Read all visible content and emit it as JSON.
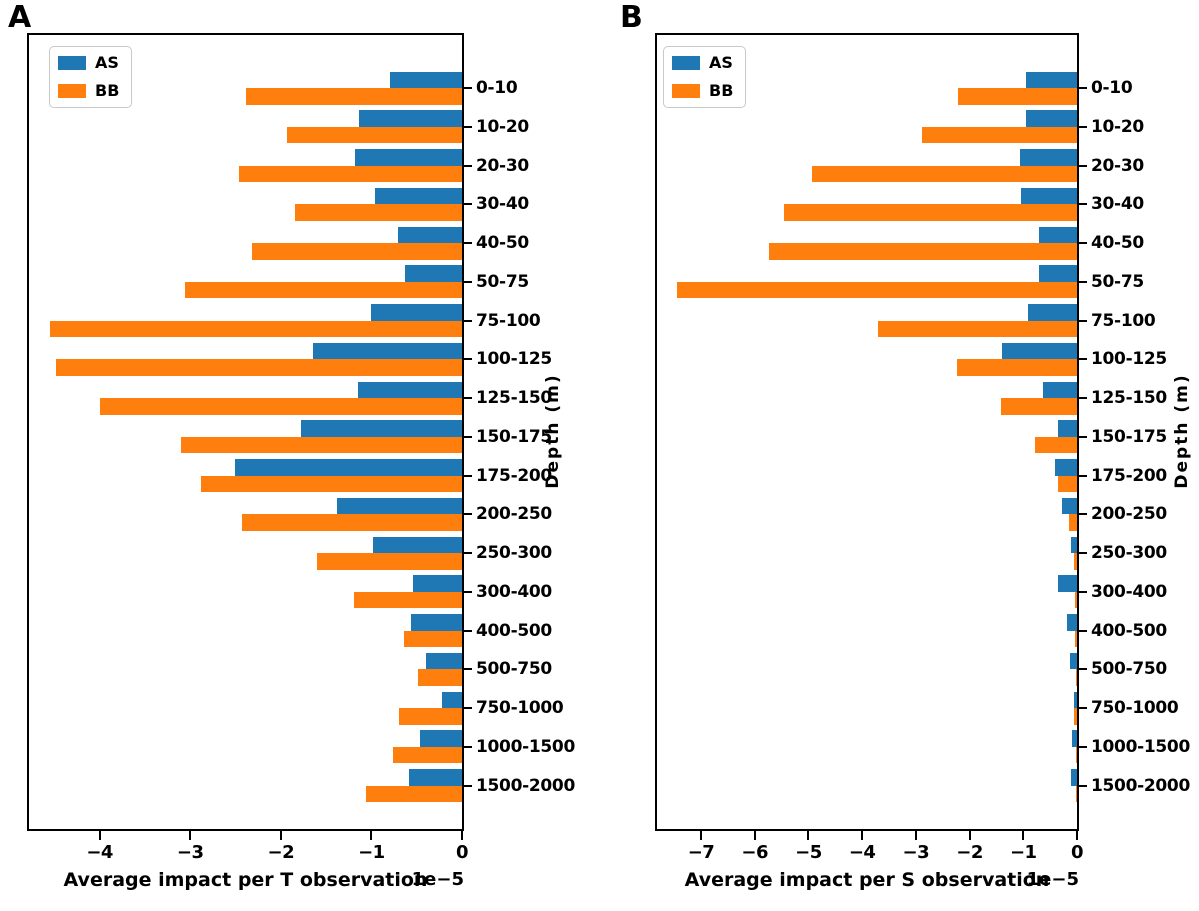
{
  "colors": {
    "as_blue": "#1f77b4",
    "bb_orange": "#ff7f0e",
    "spine": "#000000"
  },
  "chart_data": [
    {
      "type": "bar",
      "orientation": "horizontal",
      "panel_label": "A",
      "xlabel": "Average impact per T observation",
      "ylabel": "Depth (m)",
      "offset_text": "1e−5",
      "unit_scale": "1e-5",
      "grid": false,
      "legend_position": "upper left",
      "xlim": [
        -4.78,
        0
      ],
      "xticks": [
        -4,
        -3,
        -2,
        -1,
        0
      ],
      "legend": [
        {
          "name": "AS",
          "color": "#1f77b4"
        },
        {
          "name": "BB",
          "color": "#ff7f0e"
        }
      ],
      "categories": [
        "0-10",
        "10-20",
        "20-30",
        "30-40",
        "40-50",
        "50-75",
        "75-100",
        "100-125",
        "125-150",
        "150-175",
        "175-200",
        "200-250",
        "250-300",
        "300-400",
        "400-500",
        "500-750",
        "750-1000",
        "1000-1500",
        "1500-2000"
      ],
      "series": [
        {
          "name": "AS",
          "color": "#1f77b4",
          "values": [
            -0.8,
            -1.14,
            -1.18,
            -0.96,
            -0.71,
            -0.63,
            -1.0,
            -1.64,
            -1.15,
            -1.78,
            -2.51,
            -1.38,
            -0.98,
            -0.54,
            -0.56,
            -0.4,
            -0.22,
            -0.46,
            -0.58
          ]
        },
        {
          "name": "BB",
          "color": "#ff7f0e",
          "values": [
            -2.39,
            -1.93,
            -2.46,
            -1.84,
            -2.32,
            -3.06,
            -4.55,
            -4.48,
            -4.0,
            -3.1,
            -2.88,
            -2.43,
            -1.6,
            -1.19,
            -0.64,
            -0.49,
            -0.7,
            -0.76,
            -1.06
          ]
        }
      ]
    },
    {
      "type": "bar",
      "orientation": "horizontal",
      "panel_label": "B",
      "xlabel": "Average impact per S observation",
      "ylabel": "Depth (m)",
      "offset_text": "1e−5",
      "unit_scale": "1e-5",
      "grid": false,
      "legend_position": "upper left",
      "xlim": [
        -7.82,
        0
      ],
      "xticks": [
        -7,
        -6,
        -5,
        -4,
        -3,
        -2,
        -1,
        0
      ],
      "legend": [
        {
          "name": "AS",
          "color": "#1f77b4"
        },
        {
          "name": "BB",
          "color": "#ff7f0e"
        }
      ],
      "categories": [
        "0-10",
        "10-20",
        "20-30",
        "30-40",
        "40-50",
        "50-75",
        "75-100",
        "100-125",
        "125-150",
        "150-175",
        "175-200",
        "200-250",
        "250-300",
        "300-400",
        "400-500",
        "500-750",
        "750-1000",
        "1000-1500",
        "1500-2000"
      ],
      "series": [
        {
          "name": "AS",
          "color": "#1f77b4",
          "values": [
            -0.95,
            -0.95,
            -1.07,
            -1.04,
            -0.7,
            -0.71,
            -0.92,
            -1.4,
            -0.63,
            -0.36,
            -0.41,
            -0.28,
            -0.11,
            -0.35,
            -0.18,
            -0.13,
            -0.05,
            -0.09,
            -0.12
          ]
        },
        {
          "name": "BB",
          "color": "#ff7f0e",
          "values": [
            -2.21,
            -2.88,
            -4.94,
            -5.46,
            -5.73,
            -7.45,
            -3.7,
            -2.24,
            -1.41,
            -0.78,
            -0.35,
            -0.14,
            -0.06,
            -0.03,
            -0.03,
            -0.02,
            -0.06,
            -0.015,
            -0.025
          ]
        }
      ]
    }
  ]
}
